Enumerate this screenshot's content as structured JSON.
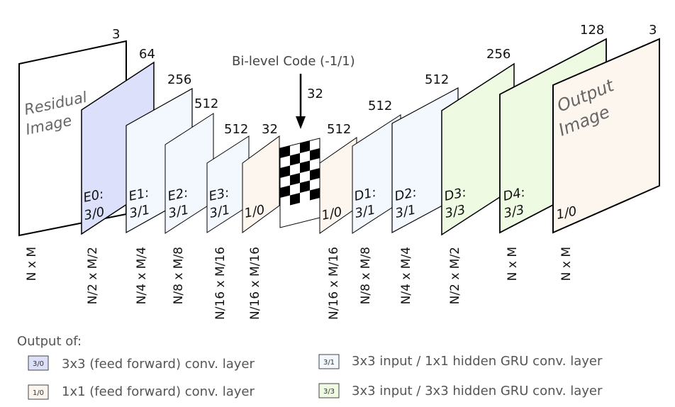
{
  "input": {
    "channels": "3",
    "label_line1": "Residual",
    "label_line2": "Image",
    "dims": "N x M"
  },
  "code": {
    "title": "Bi-level Code (-1/1)",
    "channels": "32"
  },
  "layers": [
    {
      "name": "E0:",
      "kernel": "3/0",
      "channels": "64",
      "dims": "N/2 x M/2",
      "type": "ff33"
    },
    {
      "name": "E1:",
      "kernel": "3/1",
      "channels": "256",
      "dims": "N/4 x M/4",
      "type": "gru31"
    },
    {
      "name": "E2:",
      "kernel": "3/1",
      "channels": "512",
      "dims": "N/8 x M/8",
      "type": "gru31"
    },
    {
      "name": "E3:",
      "kernel": "3/1",
      "channels": "512",
      "dims": "N/16 x M/16",
      "type": "gru31"
    },
    {
      "name": "",
      "kernel": "1/0",
      "channels": "32",
      "dims": "N/16 x M/16",
      "type": "ff11"
    },
    {
      "name": "",
      "kernel": "1/0",
      "channels": "512",
      "dims": "N/16 x M/16",
      "type": "ff11"
    },
    {
      "name": "D1:",
      "kernel": "3/1",
      "channels": "512",
      "dims": "N/8 x M/8",
      "type": "gru31"
    },
    {
      "name": "D2:",
      "kernel": "3/1",
      "channels": "512",
      "dims": "N/4 x M/4",
      "type": "gru31"
    },
    {
      "name": "D3:",
      "kernel": "3/3",
      "channels": "256",
      "dims": "N/2 x M/2",
      "type": "gru33"
    },
    {
      "name": "D4:",
      "kernel": "3/3",
      "channels": "128",
      "dims": "N x M",
      "type": "gru33"
    }
  ],
  "output": {
    "channels": "3",
    "label_line1": "Output",
    "label_line2": "Image",
    "kernel": "1/0",
    "dims": "N x M"
  },
  "legend": {
    "title": "Output of:",
    "items": [
      {
        "swatch": "3/0",
        "text": "3x3 (feed forward) conv. layer",
        "color": "#dde0fa"
      },
      {
        "swatch": "3/1",
        "text": "3x3 input / 1x1 hidden GRU conv. layer",
        "color": "#f3f8fe"
      },
      {
        "swatch": "1/0",
        "text": "1x1 (feed forward) conv. layer",
        "color": "#fdf6ef"
      },
      {
        "swatch": "3/3",
        "text": "3x3 input / 3x3 hidden GRU conv. layer",
        "color": "#eefae2"
      }
    ]
  },
  "colors": {
    "ff33": "#dde0fa",
    "gru31": "#f3f8fe",
    "ff11": "#fdf6ef",
    "gru33": "#eefae2",
    "output": "#fdf6ef",
    "input": "#ffffff",
    "label_gray": "#666666",
    "text": "#222222"
  }
}
